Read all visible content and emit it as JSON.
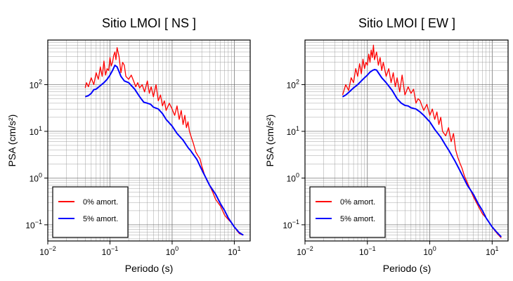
{
  "chart_data": [
    {
      "type": "line",
      "title": "Sitio LMOI [ NS ]",
      "xlabel": "Periodo (s)",
      "ylabel": "PSA (cm/s²)",
      "xscale": "log",
      "yscale": "log",
      "xlim": [
        0.01,
        18
      ],
      "ylim": [
        0.045,
        900
      ],
      "x_ticks": [
        {
          "base": "10",
          "exp": "−2",
          "value": 0.01
        },
        {
          "base": "10",
          "exp": "−1",
          "value": 0.1
        },
        {
          "base": "10",
          "exp": "0",
          "value": 1
        },
        {
          "base": "10",
          "exp": "1",
          "value": 10
        }
      ],
      "y_ticks": [
        {
          "base": "10",
          "exp": "−1",
          "value": 0.1
        },
        {
          "base": "10",
          "exp": "0",
          "value": 1
        },
        {
          "base": "10",
          "exp": "1",
          "value": 10
        },
        {
          "base": "10",
          "exp": "2",
          "value": 100
        }
      ],
      "grid": true,
      "legend_position": "bottom-left",
      "series": [
        {
          "name": "0% amort.",
          "color": "#ff0000",
          "x": [
            0.04,
            0.042,
            0.045,
            0.05,
            0.055,
            0.06,
            0.065,
            0.07,
            0.075,
            0.08,
            0.085,
            0.09,
            0.095,
            0.1,
            0.105,
            0.11,
            0.115,
            0.12,
            0.125,
            0.13,
            0.14,
            0.15,
            0.16,
            0.17,
            0.18,
            0.2,
            0.22,
            0.24,
            0.26,
            0.28,
            0.3,
            0.33,
            0.36,
            0.4,
            0.43,
            0.46,
            0.5,
            0.55,
            0.6,
            0.65,
            0.7,
            0.75,
            0.8,
            0.9,
            1.0,
            1.1,
            1.2,
            1.3,
            1.4,
            1.5,
            1.6,
            1.7,
            1.8,
            1.9,
            2.0,
            2.2,
            2.4,
            2.6,
            2.8,
            3.0,
            3.3,
            3.6,
            4.0,
            4.5,
            5.0,
            6.0,
            7.0,
            8.0,
            9.0,
            10.0,
            11.0,
            12.0,
            13.0,
            14.0
          ],
          "y": [
            85,
            110,
            90,
            140,
            100,
            180,
            130,
            240,
            150,
            320,
            160,
            220,
            200,
            380,
            250,
            300,
            420,
            500,
            340,
            620,
            400,
            180,
            300,
            260,
            150,
            130,
            160,
            120,
            90,
            110,
            85,
            100,
            70,
            120,
            65,
            90,
            55,
            100,
            45,
            60,
            35,
            45,
            28,
            40,
            30,
            22,
            35,
            18,
            28,
            14,
            22,
            12,
            16,
            10,
            8.0,
            5.5,
            3.6,
            3.0,
            2.6,
            1.8,
            1.2,
            0.9,
            0.7,
            0.5,
            0.35,
            0.25,
            0.16,
            0.13,
            0.11,
            0.09,
            0.075,
            0.065,
            0.062,
            0.06
          ]
        },
        {
          "name": "5% amort.",
          "color": "#0000ff",
          "x": [
            0.04,
            0.045,
            0.05,
            0.055,
            0.06,
            0.07,
            0.08,
            0.09,
            0.1,
            0.11,
            0.12,
            0.13,
            0.14,
            0.15,
            0.17,
            0.2,
            0.25,
            0.3,
            0.35,
            0.4,
            0.45,
            0.5,
            0.6,
            0.7,
            0.8,
            1.0,
            1.2,
            1.5,
            1.8,
            2.0,
            2.5,
            3.0,
            3.5,
            4.0,
            5.0,
            6.0,
            7.0,
            8.0,
            10.0,
            12.0,
            14.0
          ],
          "y": [
            55,
            58,
            65,
            78,
            80,
            95,
            110,
            130,
            160,
            200,
            260,
            240,
            190,
            150,
            120,
            110,
            80,
            55,
            42,
            40,
            38,
            33,
            30,
            24,
            18,
            13,
            9,
            6.5,
            4.5,
            3.8,
            2.5,
            1.5,
            1.0,
            0.7,
            0.45,
            0.28,
            0.2,
            0.14,
            0.09,
            0.068,
            0.06
          ]
        }
      ]
    },
    {
      "type": "line",
      "title": "Sitio LMOI [ EW ]",
      "xlabel": "Periodo (s)",
      "ylabel": "PSA (cm/s²)",
      "xscale": "log",
      "yscale": "log",
      "xlim": [
        0.01,
        18
      ],
      "ylim": [
        0.045,
        900
      ],
      "x_ticks": [
        {
          "base": "10",
          "exp": "−2",
          "value": 0.01
        },
        {
          "base": "10",
          "exp": "−1",
          "value": 0.1
        },
        {
          "base": "10",
          "exp": "0",
          "value": 1
        },
        {
          "base": "10",
          "exp": "1",
          "value": 10
        }
      ],
      "y_ticks": [
        {
          "base": "10",
          "exp": "−1",
          "value": 0.1
        },
        {
          "base": "10",
          "exp": "0",
          "value": 1
        },
        {
          "base": "10",
          "exp": "1",
          "value": 10
        },
        {
          "base": "10",
          "exp": "2",
          "value": 100
        }
      ],
      "grid": true,
      "legend_position": "bottom-left",
      "series": [
        {
          "name": "0% amort.",
          "color": "#ff0000",
          "x": [
            0.04,
            0.045,
            0.05,
            0.055,
            0.06,
            0.065,
            0.07,
            0.075,
            0.08,
            0.085,
            0.09,
            0.095,
            0.1,
            0.105,
            0.11,
            0.115,
            0.12,
            0.125,
            0.13,
            0.14,
            0.15,
            0.16,
            0.17,
            0.18,
            0.2,
            0.22,
            0.24,
            0.26,
            0.28,
            0.3,
            0.33,
            0.36,
            0.4,
            0.45,
            0.5,
            0.55,
            0.6,
            0.65,
            0.7,
            0.75,
            0.8,
            0.9,
            1.0,
            1.1,
            1.2,
            1.3,
            1.4,
            1.5,
            1.6,
            1.8,
            2.0,
            2.2,
            2.4,
            2.6,
            2.8,
            3.0,
            3.3,
            3.6,
            4.0,
            4.5,
            5.0,
            6.0,
            7.0,
            8.0,
            9.0,
            10.0,
            11.0,
            12.0,
            13.0,
            14.0
          ],
          "y": [
            60,
            100,
            75,
            140,
            110,
            220,
            150,
            280,
            170,
            350,
            220,
            300,
            260,
            450,
            300,
            550,
            380,
            700,
            340,
            500,
            260,
            380,
            200,
            300,
            150,
            220,
            110,
            180,
            90,
            140,
            70,
            160,
            60,
            90,
            65,
            80,
            40,
            50,
            45,
            35,
            28,
            38,
            22,
            30,
            18,
            26,
            14,
            20,
            10,
            8.0,
            12,
            6.0,
            9.0,
            4.0,
            2.8,
            2.2,
            1.6,
            1.1,
            0.8,
            0.55,
            0.4,
            0.25,
            0.17,
            0.14,
            0.11,
            0.09,
            0.075,
            0.065,
            0.058,
            0.052
          ]
        },
        {
          "name": "5% amort.",
          "color": "#0000ff",
          "x": [
            0.04,
            0.045,
            0.05,
            0.06,
            0.07,
            0.08,
            0.09,
            0.1,
            0.11,
            0.12,
            0.13,
            0.14,
            0.15,
            0.17,
            0.2,
            0.25,
            0.3,
            0.35,
            0.4,
            0.45,
            0.5,
            0.6,
            0.7,
            0.8,
            1.0,
            1.2,
            1.5,
            1.8,
            2.0,
            2.5,
            3.0,
            3.5,
            4.0,
            5.0,
            6.0,
            7.0,
            8.0,
            10.0,
            12.0,
            14.0
          ],
          "y": [
            55,
            60,
            68,
            85,
            100,
            120,
            140,
            160,
            185,
            200,
            210,
            205,
            180,
            140,
            110,
            75,
            50,
            40,
            36,
            35,
            32,
            30,
            26,
            22,
            16,
            11,
            7.5,
            5.0,
            4.0,
            2.4,
            1.5,
            1.0,
            0.7,
            0.45,
            0.28,
            0.2,
            0.14,
            0.09,
            0.068,
            0.055
          ]
        }
      ]
    }
  ]
}
